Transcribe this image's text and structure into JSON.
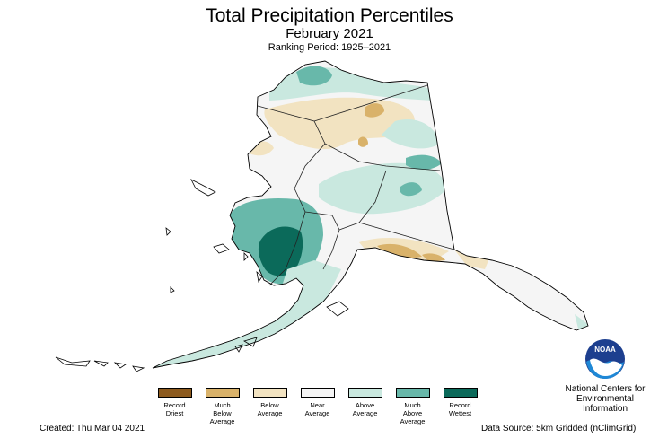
{
  "header": {
    "title": "Total Precipitation Percentiles",
    "subtitle": "February 2021",
    "ranking": "Ranking Period: 1925–2021"
  },
  "legend": [
    {
      "label": "Record\nDriest",
      "color": "#8c5a1e"
    },
    {
      "label": "Much\nBelow\nAverage",
      "color": "#d9b26a"
    },
    {
      "label": "Below\nAverage",
      "color": "#f2e3c1"
    },
    {
      "label": "Near\nAverage",
      "color": "#f5f5f5"
    },
    {
      "label": "Above\nAverage",
      "color": "#c9e8df"
    },
    {
      "label": "Much\nAbove\nAverage",
      "color": "#68b8aa"
    },
    {
      "label": "Record\nWettest",
      "color": "#0b6a5a"
    }
  ],
  "footer": {
    "created": "Created: Thu Mar 04 2021",
    "source": "Data Source: 5km Gridded (nClimGrid)"
  },
  "logo": {
    "text": "NOAA",
    "org_name": "National Centers for\nEnvironmental\nInformation"
  }
}
